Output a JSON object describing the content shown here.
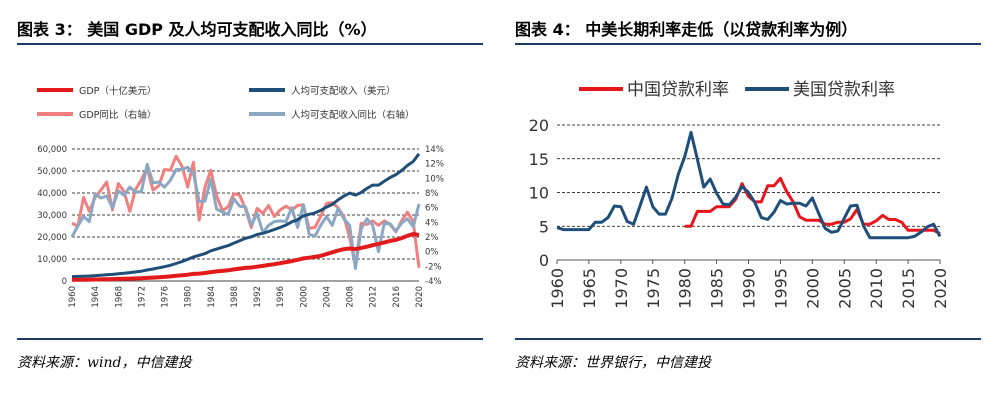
{
  "figure3": {
    "title": "图表 3：    美国 GDP 及人均可支配收入同比（%）",
    "source": "资料来源：wind，中信建投"
  },
  "figure4": {
    "title": "图表 4：    中美长期利率走低（以贷款利率为例）",
    "source": "资料来源：世界银行，中信建投"
  },
  "chart_data": [
    {
      "type": "line",
      "title": "美国 GDP 及人均可支配收入同比（%）",
      "x": [
        1960,
        1961,
        1962,
        1963,
        1964,
        1965,
        1966,
        1967,
        1968,
        1969,
        1970,
        1971,
        1972,
        1973,
        1974,
        1975,
        1976,
        1977,
        1978,
        1979,
        1980,
        1981,
        1982,
        1983,
        1984,
        1985,
        1986,
        1987,
        1988,
        1989,
        1990,
        1991,
        1992,
        1993,
        1994,
        1995,
        1996,
        1997,
        1998,
        1999,
        2000,
        2001,
        2002,
        2003,
        2004,
        2005,
        2006,
        2007,
        2008,
        2009,
        2010,
        2011,
        2012,
        2013,
        2014,
        2015,
        2016,
        2017,
        2018,
        2019,
        2020
      ],
      "x_tick_labels": [
        "1960",
        "1964",
        "1968",
        "1972",
        "1976",
        "1980",
        "1984",
        "1988",
        "1992",
        "1996",
        "2000",
        "2004",
        "2008",
        "2012",
        "2016",
        "2020"
      ],
      "y_left_ticks": [
        "0",
        "10,000",
        "20,000",
        "30,000",
        "40,000",
        "50,000",
        "60,000"
      ],
      "y_right_ticks": [
        "-4%",
        "-2%",
        "0%",
        "2%",
        "4%",
        "6%",
        "8%",
        "10%",
        "12%",
        "14%"
      ],
      "ylim_left": [
        0,
        60000
      ],
      "ylim_right": [
        -4,
        14
      ],
      "series": [
        {
          "name": "GDP（十亿美元）",
          "axis": "left",
          "color": "#e31a1c",
          "width": 4,
          "values": [
            543,
            563,
            605,
            638,
            686,
            744,
            815,
            862,
            943,
            1019,
            1073,
            1165,
            1279,
            1425,
            1545,
            1684,
            1873,
            2082,
            2352,
            2627,
            2857,
            3207,
            3345,
            3638,
            4040,
            4346,
            4590,
            4870,
            5253,
            5657,
            5963,
            6158,
            6520,
            6858,
            7287,
            7639,
            8073,
            8577,
            9063,
            9631,
            10252,
            10582,
            10936,
            11458,
            12214,
            13037,
            13815,
            14475,
            14769,
            14478,
            15049,
            15600,
            16254,
            16843,
            17551,
            18206,
            18695,
            19480,
            20527,
            21373,
            20894
          ]
        },
        {
          "name": "人均可支配收入（美元）",
          "axis": "left",
          "color": "#1f4e79",
          "width": 3,
          "values": [
            2020,
            2090,
            2190,
            2280,
            2460,
            2640,
            2840,
            3010,
            3260,
            3510,
            3820,
            4130,
            4470,
            5000,
            5470,
            5990,
            6520,
            7150,
            7950,
            8840,
            9860,
            10920,
            11660,
            12470,
            13710,
            14510,
            15300,
            16080,
            17230,
            18300,
            19410,
            20110,
            21150,
            21700,
            22480,
            23400,
            24380,
            25390,
            26920,
            27810,
            29580,
            30300,
            30950,
            32070,
            33600,
            34820,
            36880,
            38550,
            39950,
            39030,
            40240,
            42070,
            43580,
            43600,
            45320,
            47060,
            48360,
            50250,
            52510,
            54320,
            57830
          ]
        },
        {
          "name": "GDP同比（右轴）",
          "axis": "right",
          "color": "#f08080",
          "width": 3,
          "values": [
            3.9,
            3.5,
            7.4,
            5.5,
            7.4,
            8.4,
            9.5,
            5.7,
            9.3,
            8.2,
            5.5,
            8.5,
            9.8,
            11.4,
            8.4,
            9.0,
            11.2,
            11.1,
            13.0,
            11.7,
            8.8,
            12.2,
            4.3,
            8.8,
            11.1,
            7.6,
            5.6,
            6.1,
            7.9,
            7.7,
            5.8,
            3.3,
            5.9,
            5.2,
            6.3,
            4.8,
            5.7,
            6.2,
            5.7,
            6.3,
            6.4,
            3.2,
            3.3,
            4.8,
            6.6,
            6.7,
            6.0,
            4.8,
            2.0,
            -2.0,
            3.9,
            3.7,
            4.2,
            3.6,
            4.2,
            3.7,
            2.7,
            4.2,
            5.4,
            4.1,
            -2.2
          ]
        },
        {
          "name": "人均可支配收入同比（右轴）",
          "axis": "right",
          "color": "#8aa8c4",
          "width": 3,
          "values": [
            2.0,
            3.5,
            4.8,
            4.1,
            7.9,
            7.3,
            7.6,
            6.0,
            8.3,
            7.7,
            8.8,
            8.1,
            8.2,
            11.9,
            9.4,
            9.5,
            8.8,
            9.7,
            11.2,
            11.2,
            11.5,
            10.7,
            6.8,
            6.9,
            9.9,
            5.8,
            5.4,
            5.1,
            7.2,
            6.2,
            6.1,
            3.6,
            5.2,
            2.6,
            3.6,
            4.1,
            4.2,
            4.1,
            6.0,
            3.3,
            6.4,
            2.4,
            2.1,
            3.6,
            4.8,
            3.6,
            5.9,
            4.5,
            3.6,
            -2.3,
            3.1,
            4.5,
            3.6,
            0.0,
            3.9,
            3.8,
            2.8,
            3.9,
            4.5,
            3.4,
            6.5
          ]
        }
      ]
    },
    {
      "type": "line",
      "title": "中美长期利率走低（以贷款利率为例）",
      "x": [
        1960,
        1961,
        1962,
        1963,
        1964,
        1965,
        1966,
        1967,
        1968,
        1969,
        1970,
        1971,
        1972,
        1973,
        1974,
        1975,
        1976,
        1977,
        1978,
        1979,
        1980,
        1981,
        1982,
        1983,
        1984,
        1985,
        1986,
        1987,
        1988,
        1989,
        1990,
        1991,
        1992,
        1993,
        1994,
        1995,
        1996,
        1997,
        1998,
        1999,
        2000,
        2001,
        2002,
        2003,
        2004,
        2005,
        2006,
        2007,
        2008,
        2009,
        2010,
        2011,
        2012,
        2013,
        2014,
        2015,
        2016,
        2017,
        2018,
        2019,
        2020
      ],
      "x_tick_labels": [
        "1960",
        "1965",
        "1970",
        "1975",
        "1980",
        "1985",
        "1990",
        "1995",
        "2000",
        "2005",
        "2010",
        "2015",
        "2020"
      ],
      "y_ticks": [
        "0",
        "5",
        "10",
        "15",
        "20"
      ],
      "ylim": [
        0,
        20
      ],
      "legend": [
        "中国贷款利率",
        "美国贷款利率"
      ],
      "series": [
        {
          "name": "中国贷款利率",
          "color": "#e8151b",
          "width": 3,
          "values": [
            null,
            null,
            null,
            null,
            null,
            null,
            null,
            null,
            null,
            null,
            null,
            null,
            null,
            null,
            null,
            null,
            null,
            null,
            null,
            null,
            5.0,
            5.0,
            7.2,
            7.2,
            7.2,
            7.9,
            7.9,
            7.9,
            9.0,
            11.3,
            9.4,
            8.6,
            8.6,
            11.0,
            11.0,
            12.1,
            10.1,
            8.6,
            6.4,
            5.9,
            5.9,
            5.9,
            5.3,
            5.3,
            5.6,
            5.6,
            6.1,
            7.5,
            5.3,
            5.3,
            5.8,
            6.6,
            6.0,
            6.0,
            5.6,
            4.4,
            4.4,
            4.4,
            4.4,
            4.4,
            3.9
          ]
        },
        {
          "name": "美国贷款利率",
          "color": "#1f4e79",
          "width": 3,
          "values": [
            4.8,
            4.5,
            4.5,
            4.5,
            4.5,
            4.5,
            5.6,
            5.6,
            6.3,
            8.0,
            7.9,
            5.7,
            5.3,
            8.0,
            10.8,
            7.9,
            6.8,
            6.8,
            9.1,
            12.7,
            15.3,
            18.9,
            14.9,
            10.8,
            12.0,
            9.9,
            8.3,
            8.2,
            9.3,
            10.9,
            10.0,
            8.5,
            6.3,
            6.0,
            7.1,
            8.8,
            8.3,
            8.4,
            8.4,
            8.0,
            9.2,
            6.9,
            4.7,
            4.1,
            4.3,
            6.2,
            8.0,
            8.1,
            5.1,
            3.3,
            3.3,
            3.3,
            3.3,
            3.3,
            3.3,
            3.3,
            3.5,
            4.1,
            4.9,
            5.3,
            3.5
          ]
        }
      ]
    }
  ]
}
